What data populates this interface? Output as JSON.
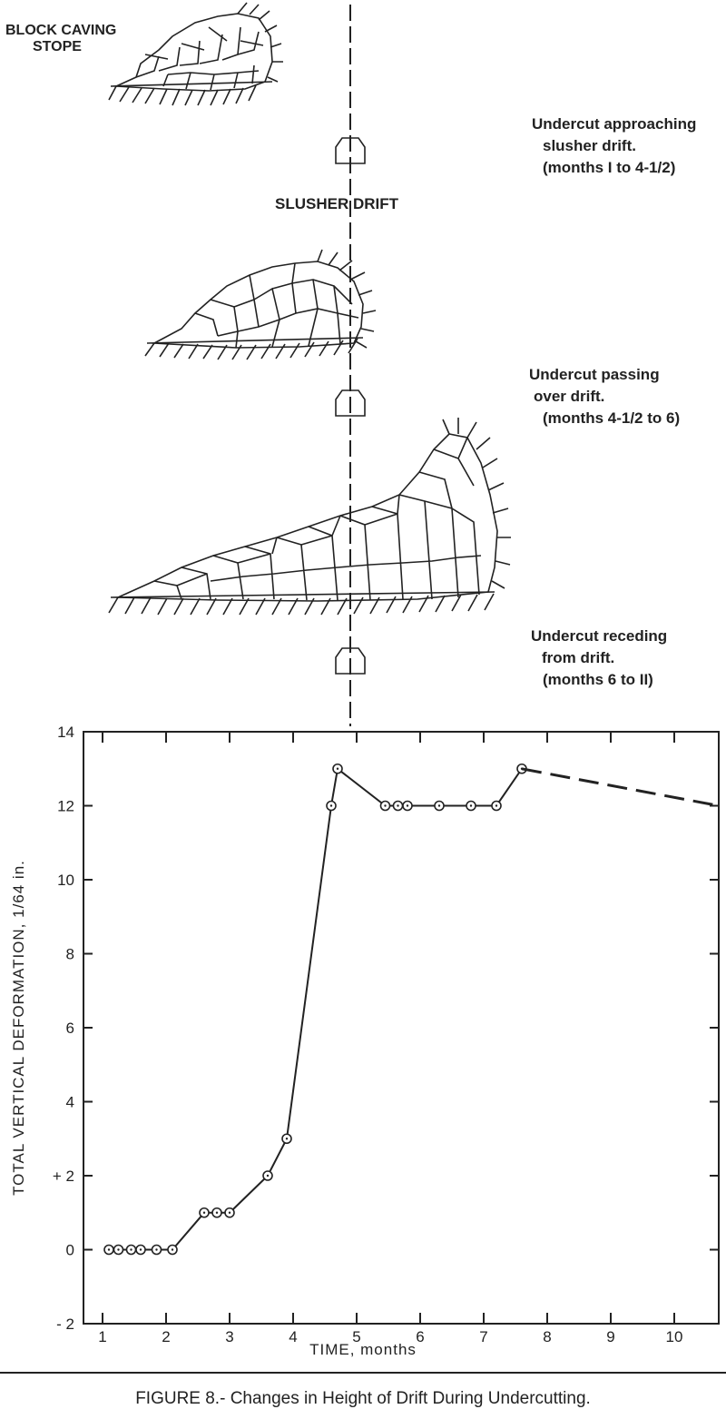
{
  "diagram": {
    "stope_label": [
      "BLOCK CAVING",
      "STOPE"
    ],
    "drift_label": "SLUSHER DRIFT",
    "stages": [
      {
        "lines": [
          "Undercut approaching",
          "slusher drift.",
          "(months I to 4-1/2)"
        ]
      },
      {
        "lines": [
          "Undercut passing",
          "over drift.",
          "(months 4-1/2 to 6)"
        ]
      },
      {
        "lines": [
          "Undercut receding",
          "from drift.",
          "(months 6 to II)"
        ]
      }
    ]
  },
  "chart_data": {
    "type": "line",
    "xlabel": "TIME, months",
    "ylabel": "TOTAL VERTICAL DEFORMATION, 1/64 in.",
    "xlim": [
      0.7,
      10.7
    ],
    "ylim": [
      -2,
      14
    ],
    "x_ticks": [
      1,
      2,
      3,
      4,
      5,
      6,
      7,
      8,
      9,
      10
    ],
    "x_tick_labels": [
      "1",
      "2",
      "3",
      "4",
      "5",
      "6",
      "7",
      "8",
      "9",
      "10"
    ],
    "y_ticks": [
      -2,
      0,
      2,
      4,
      6,
      8,
      10,
      12,
      14
    ],
    "y_tick_labels": [
      "- 2",
      "0",
      "+ 2",
      "4",
      "6",
      "8",
      "10",
      "12",
      "14"
    ],
    "grid": false,
    "series": [
      {
        "style": "solid",
        "markers": true,
        "x": [
          1.1,
          1.25,
          1.45,
          1.6,
          1.85,
          2.1,
          2.6,
          2.8,
          3.0,
          3.6,
          3.9,
          4.6,
          4.7,
          5.45,
          5.65,
          5.8,
          6.3,
          6.8,
          7.2,
          7.6
        ],
        "y": [
          0,
          0,
          0,
          0,
          0,
          0,
          1,
          1,
          1,
          2,
          3,
          12,
          13,
          12,
          12,
          12,
          12,
          12,
          12,
          13
        ]
      },
      {
        "style": "dashed",
        "markers": false,
        "x": [
          7.6,
          10.7
        ],
        "y": [
          13,
          12
        ]
      }
    ]
  },
  "caption": "FIGURE 8.- Changes in Height of Drift During Undercutting."
}
